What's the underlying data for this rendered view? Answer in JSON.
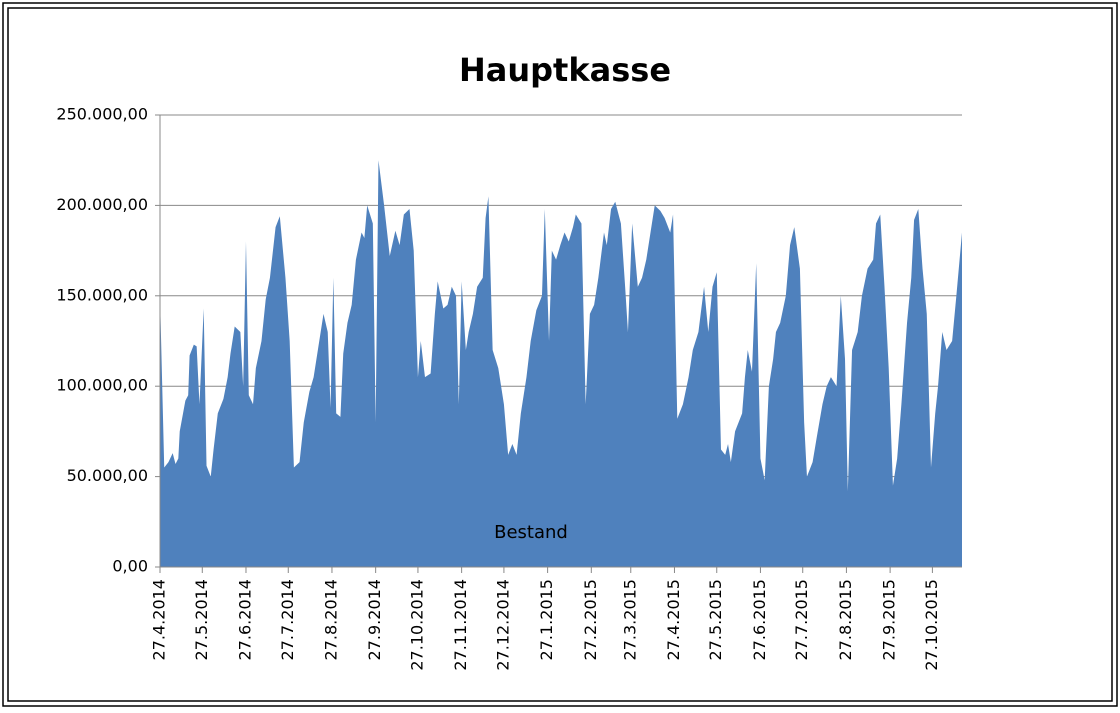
{
  "chart_data": {
    "type": "area",
    "title": "Hauptkasse",
    "x": [
      "27.4.2014",
      "30.4.2014",
      "3.5.2014",
      "6.5.2014",
      "8.5.2014",
      "10.5.2014",
      "11.5.2014",
      "15.5.2014",
      "17.5.2014",
      "18.5.2014",
      "21.5.2014",
      "23.5.2014",
      "25.5.2014",
      "28.5.2014",
      "30.5.2014",
      "2.6.2014",
      "4.6.2014",
      "7.6.2014",
      "11.6.2014",
      "14.6.2014",
      "16.6.2014",
      "19.6.2014",
      "23.6.2014",
      "25.6.2014",
      "27.6.2014",
      "29.6.2014",
      "2.7.2014",
      "4.7.2014",
      "8.7.2014",
      "11.7.2014",
      "14.7.2014",
      "18.7.2014",
      "21.7.2014",
      "25.7.2014",
      "28.7.2014",
      "31.7.2014",
      "4.8.2014",
      "7.8.2014",
      "11.8.2014",
      "14.8.2014",
      "17.8.2014",
      "21.8.2014",
      "24.8.2014",
      "26.8.2014",
      "28.8.2014",
      "30.8.2014",
      "2.9.2014",
      "4.9.2014",
      "7.9.2014",
      "10.9.2014",
      "13.9.2014",
      "17.9.2014",
      "19.9.2014",
      "21.9.2014",
      "25.9.2014",
      "27.9.2014",
      "29.9.2014",
      "3.10.2014",
      "7.10.2014",
      "11.10.2014",
      "14.10.2014",
      "17.10.2014",
      "21.10.2014",
      "24.10.2014",
      "27.10.2014",
      "29.10.2014",
      "1.11.2014",
      "5.11.2014",
      "8.11.2014",
      "10.11.2014",
      "14.11.2014",
      "17.11.2014",
      "20.11.2014",
      "23.11.2014",
      "25.11.2014",
      "27.11.2014",
      "30.11.2014",
      "2.12.2014",
      "5.12.2014",
      "8.12.2014",
      "12.12.2014",
      "14.12.2014",
      "16.12.2014",
      "19.12.2014",
      "23.12.2014",
      "27.12.2014",
      "30.12.2014",
      "2.1.2015",
      "5.1.2015",
      "8.1.2015",
      "12.1.2015",
      "15.1.2015",
      "19.1.2015",
      "23.1.2015",
      "25.1.2015",
      "28.1.2015",
      "30.1.2015",
      "2.2.2015",
      "5.2.2015",
      "8.2.2015",
      "11.2.2015",
      "14.2.2015",
      "16.2.2015",
      "20.2.2015",
      "23.2.2015",
      "26.2.2015",
      "1.3.2015",
      "4.3.2015",
      "8.3.2015",
      "10.3.2015",
      "13.3.2015",
      "16.3.2015",
      "20.3.2015",
      "23.3.2015",
      "25.3.2015",
      "28.3.2015",
      "1.4.2015",
      "4.4.2015",
      "7.4.2015",
      "10.4.2015",
      "13.4.2015",
      "17.4.2015",
      "20.4.2015",
      "24.4.2015",
      "26.4.2015",
      "29.4.2015",
      "3.5.2015",
      "7.5.2015",
      "10.5.2015",
      "14.5.2015",
      "18.5.2015",
      "21.5.2015",
      "24.5.2015",
      "27.5.2015",
      "30.5.2015",
      "2.6.2015",
      "4.6.2015",
      "6.6.2015",
      "9.6.2015",
      "14.6.2015",
      "16.6.2015",
      "18.6.2015",
      "21.6.2015",
      "24.6.2015",
      "27.6.2015",
      "30.6.2015",
      "3.7.2015",
      "6.7.2015",
      "8.7.2015",
      "11.7.2015",
      "15.7.2015",
      "18.7.2015",
      "21.7.2015",
      "25.7.2015",
      "28.7.2015",
      "30.7.2015",
      "3.8.2015",
      "6.8.2015",
      "10.8.2015",
      "13.8.2015",
      "16.8.2015",
      "20.8.2015",
      "23.8.2015",
      "26.8.2015",
      "28.8.2015",
      "31.8.2015",
      "4.9.2015",
      "7.9.2015",
      "11.9.2015",
      "15.9.2015",
      "17.9.2015",
      "20.9.2015",
      "23.9.2015",
      "26.9.2015",
      "29.9.2015",
      "2.10.2015",
      "5.10.2015",
      "9.10.2015",
      "12.10.2015",
      "14.10.2015",
      "17.10.2015",
      "20.10.2015",
      "23.10.2015",
      "26.10.2015",
      "29.10.2015",
      "31.10.2015",
      "3.11.2015",
      "6.11.2015",
      "10.11.2015",
      "13.11.2015",
      "17.11.2015"
    ],
    "series": [
      {
        "name": "Bestand",
        "color": "#4f81bd",
        "values": [
          150000,
          55000,
          58000,
          63000,
          57000,
          60000,
          75000,
          92000,
          95000,
          117000,
          123000,
          122000,
          90000,
          143000,
          56000,
          50000,
          65000,
          85000,
          93000,
          105000,
          118000,
          133000,
          130000,
          100000,
          180000,
          95000,
          90000,
          110000,
          125000,
          148000,
          160000,
          188000,
          194000,
          160000,
          125000,
          55000,
          58000,
          80000,
          97000,
          105000,
          120000,
          140000,
          130000,
          88000,
          160000,
          85000,
          83000,
          118000,
          135000,
          145000,
          170000,
          185000,
          182000,
          200000,
          190000,
          80000,
          225000,
          200000,
          172000,
          186000,
          178000,
          195000,
          198000,
          175000,
          105000,
          125000,
          105000,
          107000,
          140000,
          158000,
          143000,
          145000,
          155000,
          150000,
          90000,
          158000,
          120000,
          130000,
          140000,
          155000,
          160000,
          193000,
          205000,
          120000,
          110000,
          90000,
          62000,
          68000,
          62000,
          85000,
          105000,
          125000,
          142000,
          150000,
          198000,
          125000,
          175000,
          170000,
          178000,
          185000,
          180000,
          188000,
          195000,
          190000,
          90000,
          140000,
          145000,
          160000,
          185000,
          178000,
          198000,
          202000,
          190000,
          155000,
          130000,
          190000,
          155000,
          160000,
          170000,
          185000,
          200000,
          197000,
          193000,
          185000,
          195000,
          82000,
          90000,
          105000,
          120000,
          130000,
          155000,
          130000,
          155000,
          163000,
          65000,
          62000,
          68000,
          58000,
          75000,
          85000,
          105000,
          120000,
          108000,
          168000,
          60000,
          48000,
          100000,
          115000,
          130000,
          135000,
          150000,
          178000,
          188000,
          165000,
          80000,
          50000,
          58000,
          72000,
          90000,
          100000,
          105000,
          100000,
          150000,
          115000,
          42000,
          120000,
          130000,
          150000,
          165000,
          170000,
          190000,
          195000,
          155000,
          110000,
          45000,
          60000,
          90000,
          135000,
          160000,
          192000,
          198000,
          165000,
          140000,
          55000,
          85000,
          100000,
          130000,
          120000,
          125000,
          150000,
          185000
        ]
      }
    ],
    "xlim": [
      "27.4.2014",
      "17.11.2015"
    ],
    "xticks": [
      "27.4.2014",
      "27.5.2014",
      "27.6.2014",
      "27.7.2014",
      "27.8.2014",
      "27.9.2014",
      "27.10.2014",
      "27.11.2014",
      "27.12.2014",
      "27.1.2015",
      "27.2.2015",
      "27.3.2015",
      "27.4.2015",
      "27.5.2015",
      "27.6.2015",
      "27.7.2015",
      "27.8.2015",
      "27.9.2015",
      "27.10.2015"
    ],
    "ylim": [
      0,
      250000
    ],
    "yticks": [
      {
        "value": 0,
        "label": "0,00"
      },
      {
        "value": 50000,
        "label": "50.000,00"
      },
      {
        "value": 100000,
        "label": "100.000,00"
      },
      {
        "value": 150000,
        "label": "150.000,00"
      },
      {
        "value": 200000,
        "label": "200.000,00"
      },
      {
        "value": 250000,
        "label": "250.000,00"
      }
    ],
    "grid": true
  }
}
